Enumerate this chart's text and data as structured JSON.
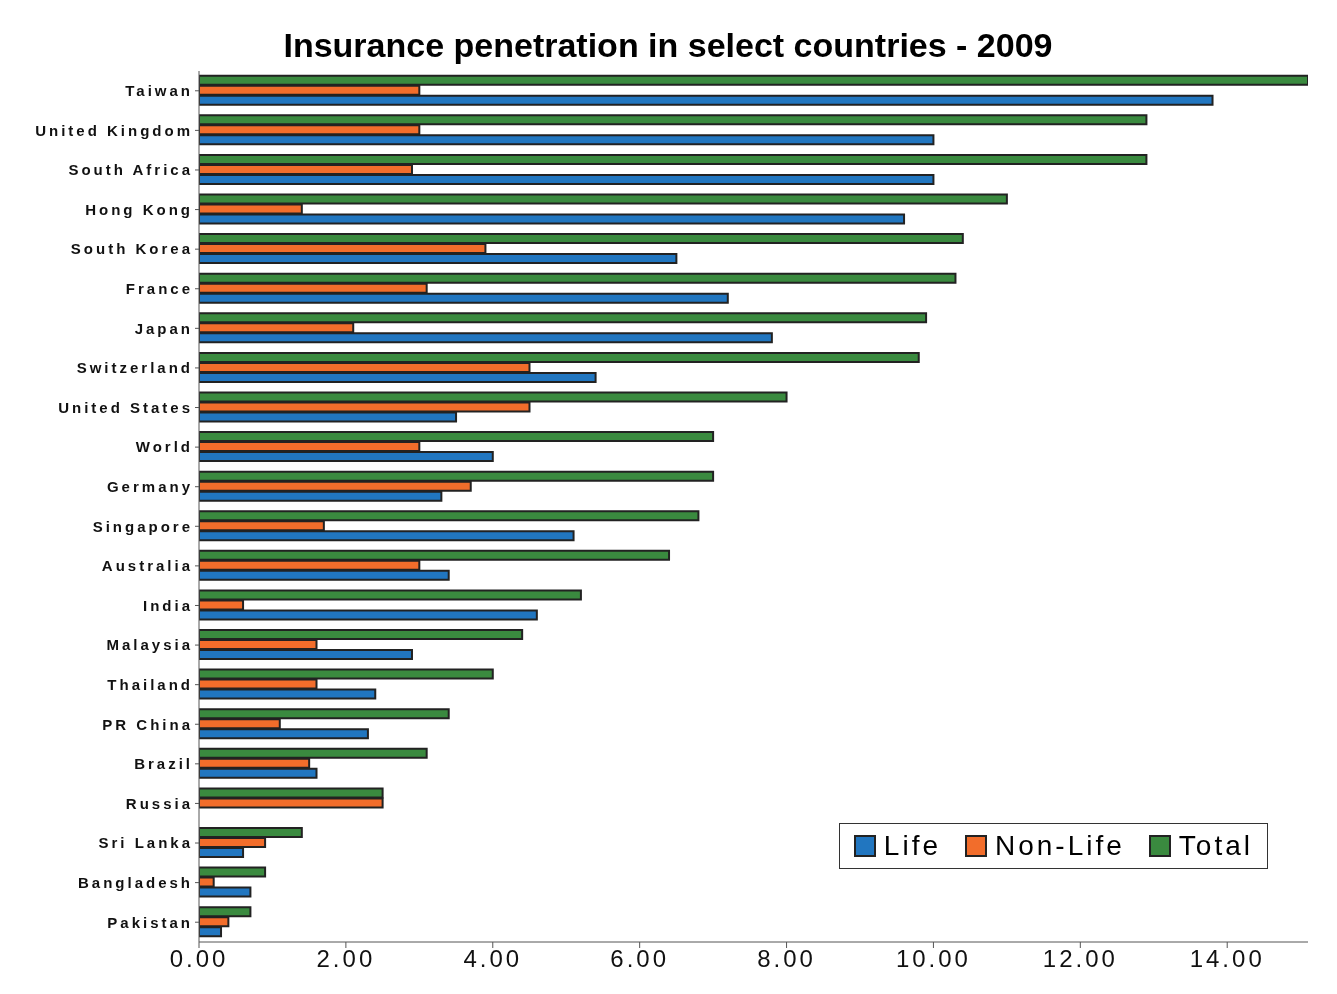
{
  "chart_data": {
    "type": "bar",
    "orientation": "horizontal",
    "title": "Insurance penetration in select countries - 2009",
    "categories": [
      "Taiwan",
      "United Kingdom",
      "South Africa",
      "Hong Kong",
      "South Korea",
      "France",
      "Japan",
      "Switzerland",
      "United States",
      "World",
      "Germany",
      "Singapore",
      "Australia",
      "India",
      "Malaysia",
      "Thailand",
      "PR China",
      "Brazil",
      "Russia",
      "Sri Lanka",
      "Bangladesh",
      "Pakistan"
    ],
    "series": [
      {
        "name": "Life",
        "color": "#2176c0",
        "values": [
          13.8,
          10.0,
          10.0,
          9.6,
          6.5,
          7.2,
          7.8,
          5.4,
          3.5,
          4.0,
          3.3,
          5.1,
          3.4,
          4.6,
          2.9,
          2.4,
          2.3,
          1.6,
          null,
          0.6,
          0.7,
          0.3
        ]
      },
      {
        "name": "Non-Life",
        "color": "#f26d2b",
        "values": [
          3.0,
          3.0,
          2.9,
          1.4,
          3.9,
          3.1,
          2.1,
          4.5,
          4.5,
          3.0,
          3.7,
          1.7,
          3.0,
          0.6,
          1.6,
          1.6,
          1.1,
          1.5,
          2.5,
          0.9,
          0.2,
          0.4
        ]
      },
      {
        "name": "Total",
        "color": "#3a8a3f",
        "values": [
          15.1,
          12.9,
          12.9,
          11.0,
          10.4,
          10.3,
          9.9,
          9.8,
          8.0,
          7.0,
          7.0,
          6.8,
          6.4,
          5.2,
          4.4,
          4.0,
          3.4,
          3.1,
          2.5,
          1.4,
          0.9,
          0.7
        ]
      }
    ],
    "xlim": [
      0,
      15.1
    ],
    "xticks": [
      {
        "value": 0,
        "label": "0.00"
      },
      {
        "value": 2,
        "label": "2.00"
      },
      {
        "value": 4,
        "label": "4.00"
      },
      {
        "value": 6,
        "label": "6.00"
      },
      {
        "value": 8,
        "label": "8.00"
      },
      {
        "value": 10,
        "label": "10.00"
      },
      {
        "value": 12,
        "label": "12.00"
      },
      {
        "value": 14,
        "label": "14.00"
      }
    ],
    "grid": false,
    "legend": "bottom right"
  }
}
